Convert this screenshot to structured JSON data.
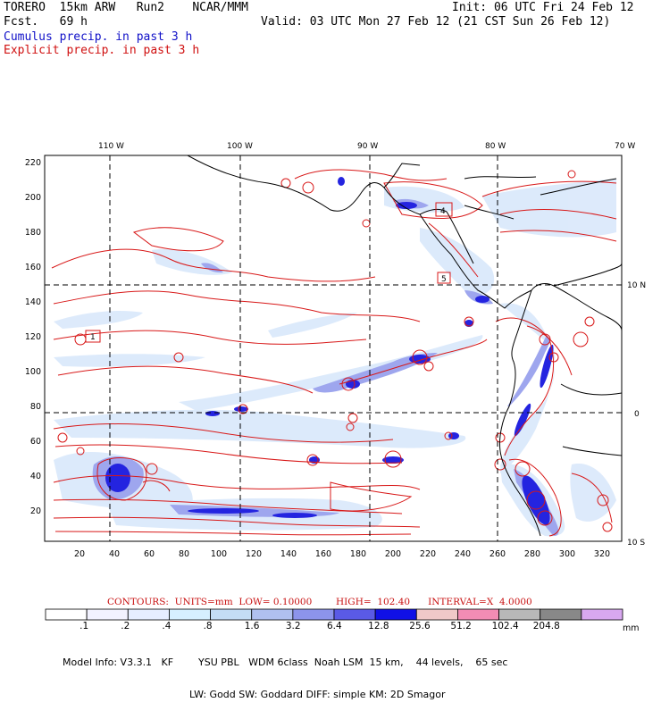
{
  "header": {
    "model_line": "TORERO  15km ARW   Run2    NCAR/MMM",
    "fcst_line": "Fcst.   69 h",
    "init_line": "Init: 06 UTC Fri 24 Feb 12",
    "valid_line": "Valid: 03 UTC Mon 27 Feb 12 (21 CST Sun 26 Feb 12)",
    "cumulus_label": "Cumulus precip. in past 3 h",
    "explicit_label": "Explicit precip. in past 3 h"
  },
  "map": {
    "lon_labels": [
      "110 W",
      "100 W",
      "90 W",
      "80 W",
      "70 W"
    ],
    "lat_labels": [
      "10 N",
      "0",
      "10 S"
    ],
    "x_ticks": [
      "20",
      "40",
      "60",
      "80",
      "100",
      "120",
      "140",
      "160",
      "180",
      "200",
      "220",
      "240",
      "260",
      "280",
      "300",
      "320"
    ],
    "y_ticks": [
      "220",
      "200",
      "180",
      "160",
      "140",
      "120",
      "100",
      "80",
      "60",
      "40",
      "20"
    ],
    "box_labels": [
      "1",
      "4",
      "5"
    ],
    "colors": {
      "cumulus_contour": "#2a2ad6",
      "explicit_contour": "#d81818",
      "coastline": "#000000"
    }
  },
  "legend": {
    "contours_text": "CONTOURS:  UNITS=mm  LOW= 0.10000        HIGH=  102.40      INTERVAL=X  4.0000",
    "bin_colors": [
      "#ffffff",
      "#f2f2ff",
      "#e6eeff",
      "#d6f0ff",
      "#c4ddf5",
      "#b0c0f0",
      "#8c94ec",
      "#5a5ae6",
      "#1010e6",
      "#f0c8c8",
      "#f28cb4",
      "#b8b8b8",
      "#888888",
      "#d8a8f0"
    ],
    "tick_labels": [
      ".1",
      ".2",
      ".4",
      ".8",
      "1.6",
      "3.2",
      "6.4",
      "12.8",
      "25.6",
      "51.2",
      "102.4",
      "204.8"
    ],
    "units": "mm"
  },
  "model_info": {
    "line1": "Model Info: V3.3.1   KF        YSU PBL   WDM 6class  Noah LSM  15 km,    44 levels,    65 sec",
    "line2": "LW: Godd SW: Goddard DIFF: simple KM: 2D Smagor"
  }
}
